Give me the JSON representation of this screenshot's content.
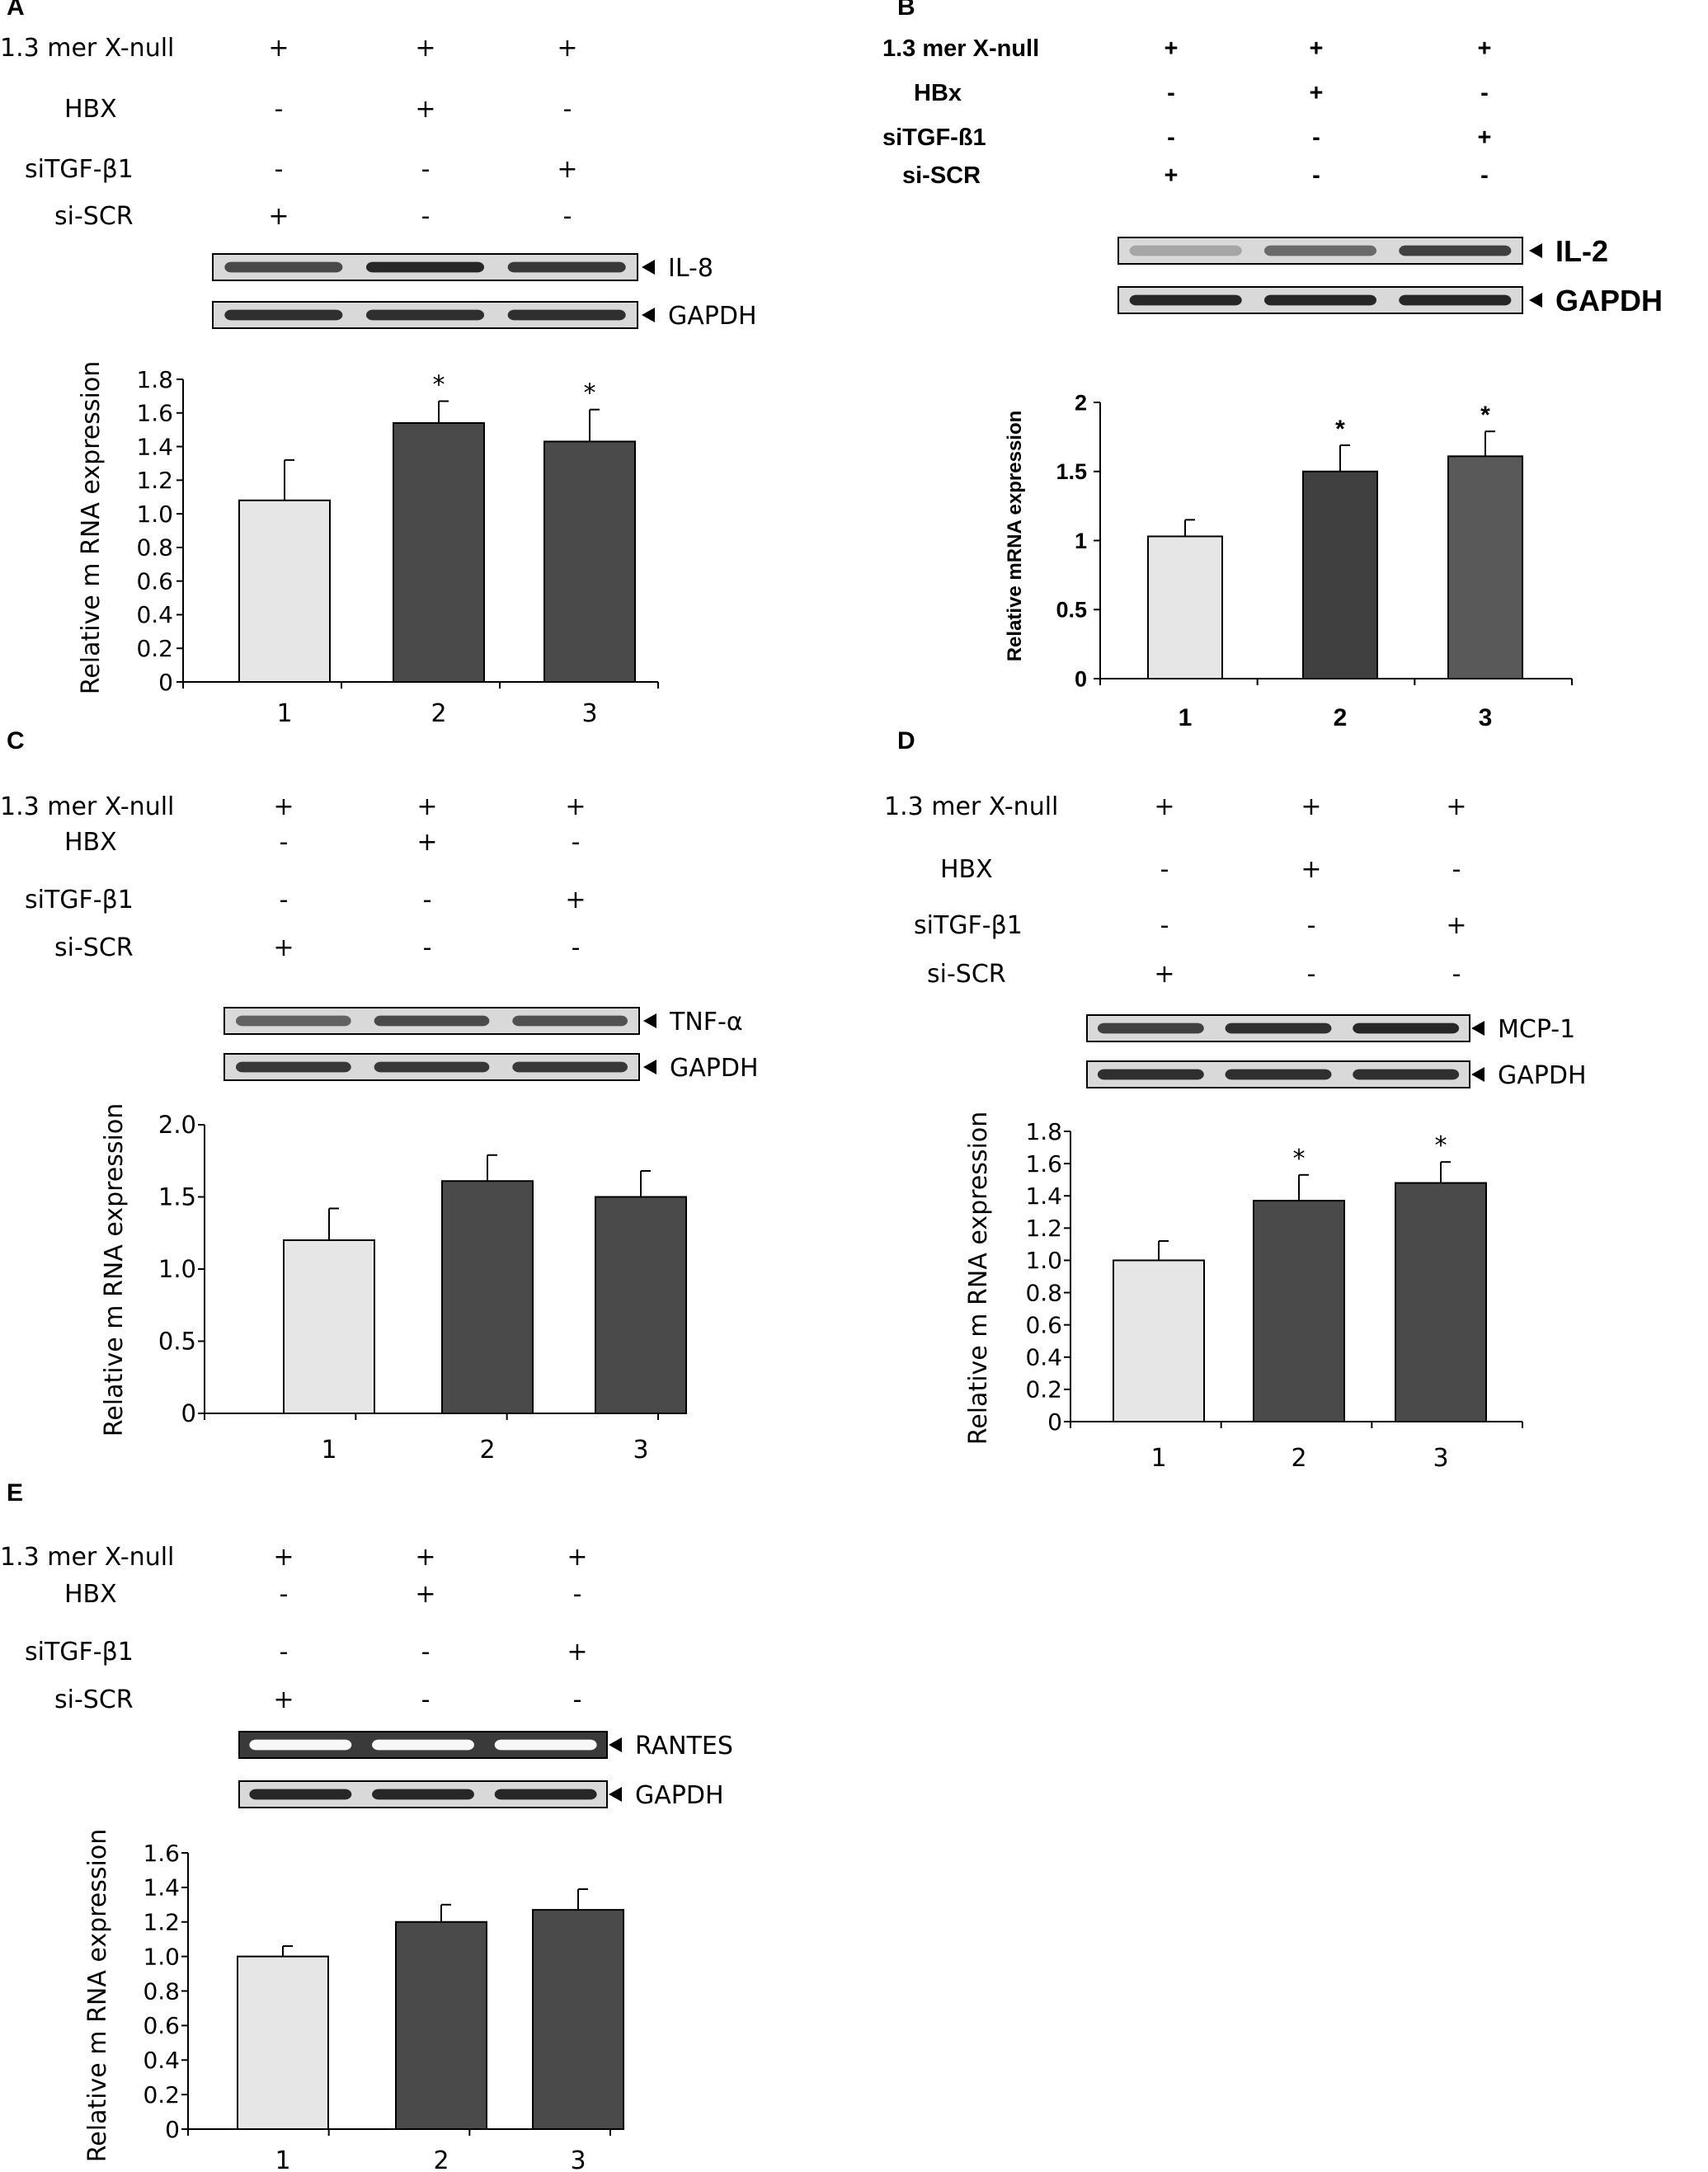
{
  "figure": {
    "panels": [
      {
        "letter": "A",
        "rows": [
          {
            "label": "1.3 mer X-null",
            "signs": [
              "+",
              "+",
              "+"
            ]
          },
          {
            "label": "HBX",
            "signs": [
              "-",
              "+",
              "-"
            ]
          },
          {
            "label": "siTGF-β1",
            "signs": [
              "-",
              "-",
              "+"
            ]
          },
          {
            "label": "si-SCR",
            "signs": [
              "+",
              "-",
              "-"
            ]
          }
        ],
        "gels": [
          {
            "label": "IL-8",
            "band_strength": [
              0.75,
              0.95,
              0.85
            ],
            "background": "light"
          },
          {
            "label": "GAPDH",
            "band_strength": [
              0.9,
              0.9,
              0.9
            ],
            "background": "light"
          }
        ]
      },
      {
        "letter": "B",
        "rows": [
          {
            "label": "1.3 mer X-null",
            "signs": [
              "+",
              "+",
              "+"
            ]
          },
          {
            "label": "HBx",
            "signs": [
              "-",
              "+",
              "-"
            ]
          },
          {
            "label": "siTGF-ß1",
            "signs": [
              "-",
              "-",
              "+"
            ]
          },
          {
            "label": "si-SCR",
            "signs": [
              "+",
              "-",
              "-"
            ]
          }
        ],
        "gels": [
          {
            "label": "IL-2",
            "band_strength": [
              0.2,
              0.55,
              0.8
            ],
            "background": "light"
          },
          {
            "label": "GAPDH",
            "band_strength": [
              0.95,
              0.95,
              0.95
            ],
            "background": "light"
          }
        ]
      },
      {
        "letter": "C",
        "rows": [
          {
            "label": "1.3 mer X-null",
            "signs": [
              "+",
              "+",
              "+"
            ]
          },
          {
            "label": "HBX",
            "signs": [
              "-",
              "+",
              "-"
            ]
          },
          {
            "label": "siTGF-β1",
            "signs": [
              "-",
              "-",
              "+"
            ]
          },
          {
            "label": "si-SCR",
            "signs": [
              "+",
              "-",
              "-"
            ]
          }
        ],
        "gels": [
          {
            "label": "TNF-α",
            "band_strength": [
              0.6,
              0.75,
              0.7
            ],
            "background": "light"
          },
          {
            "label": "GAPDH",
            "band_strength": [
              0.85,
              0.85,
              0.85
            ],
            "background": "light"
          }
        ]
      },
      {
        "letter": "D",
        "rows": [
          {
            "label": "1.3 mer X-null",
            "signs": [
              "+",
              "+",
              "+"
            ]
          },
          {
            "label": "HBX",
            "signs": [
              "-",
              "+",
              "-"
            ]
          },
          {
            "label": "siTGF-β1",
            "signs": [
              "-",
              "-",
              "+"
            ]
          },
          {
            "label": "si-SCR",
            "signs": [
              "+",
              "-",
              "-"
            ]
          }
        ],
        "gels": [
          {
            "label": "MCP-1",
            "band_strength": [
              0.8,
              0.9,
              0.95
            ],
            "background": "light"
          },
          {
            "label": "GAPDH",
            "band_strength": [
              0.9,
              0.9,
              0.9
            ],
            "background": "light"
          }
        ]
      },
      {
        "letter": "E",
        "rows": [
          {
            "label": "1.3 mer X-null",
            "signs": [
              "+",
              "+",
              "+"
            ]
          },
          {
            "label": "HBX",
            "signs": [
              "-",
              "+",
              "-"
            ]
          },
          {
            "label": "siTGF-β1",
            "signs": [
              "-",
              "-",
              "+"
            ]
          },
          {
            "label": "si-SCR",
            "signs": [
              "+",
              "-",
              "-"
            ]
          }
        ],
        "gels": [
          {
            "label": "RANTES",
            "band_strength": [
              0.9,
              0.9,
              0.9
            ],
            "background": "dark"
          },
          {
            "label": "GAPDH",
            "band_strength": [
              0.95,
              0.95,
              0.95
            ],
            "background": "light"
          }
        ]
      }
    ]
  },
  "colors": {
    "control_bar": "#e6e6e6",
    "treated_bar": "#4a4a4a",
    "panel_b_bar_2": "#404040",
    "panel_b_bar_3": "#595959",
    "axis": "#000000"
  },
  "chart_data": [
    {
      "panel": "A",
      "type": "bar",
      "categories": [
        "1",
        "2",
        "3"
      ],
      "values": [
        1.08,
        1.54,
        1.43
      ],
      "errors": [
        0.24,
        0.13,
        0.19
      ],
      "significance": [
        "",
        "*",
        "*"
      ],
      "ylabel": "Relative m RNA expression",
      "ylim": [
        0,
        1.8
      ],
      "yticks": [
        "0",
        "0.2",
        "0.4",
        "0.6",
        "0.8",
        "1.0",
        "1.2",
        "1.4",
        "1.6",
        "1.8"
      ]
    },
    {
      "panel": "B",
      "type": "bar",
      "categories": [
        "1",
        "2",
        "3"
      ],
      "values": [
        1.03,
        1.5,
        1.61
      ],
      "errors": [
        0.12,
        0.19,
        0.18
      ],
      "significance": [
        "",
        "*",
        "*"
      ],
      "ylabel": "Relative mRNA expression",
      "ylim": [
        0,
        2
      ],
      "yticks": [
        "0",
        "0.5",
        "1",
        "1.5",
        "2"
      ]
    },
    {
      "panel": "C",
      "type": "bar",
      "categories": [
        "1",
        "2",
        "3"
      ],
      "values": [
        1.2,
        1.61,
        1.5
      ],
      "errors": [
        0.22,
        0.18,
        0.18
      ],
      "significance": [
        "",
        "",
        ""
      ],
      "ylabel": "Relative m RNA expression",
      "ylim": [
        0,
        2.0
      ],
      "yticks": [
        "0",
        "0.5",
        "1.0",
        "1.5",
        "2.0"
      ]
    },
    {
      "panel": "D",
      "type": "bar",
      "categories": [
        "1",
        "2",
        "3"
      ],
      "values": [
        1.0,
        1.37,
        1.48
      ],
      "errors": [
        0.12,
        0.16,
        0.13
      ],
      "significance": [
        "",
        "*",
        "*"
      ],
      "ylabel": "Relative m RNA expression",
      "ylim": [
        0,
        1.8
      ],
      "yticks": [
        "0",
        "0.2",
        "0.4",
        "0.6",
        "0.8",
        "1.0",
        "1.2",
        "1.4",
        "1.6",
        "1.8"
      ]
    },
    {
      "panel": "E",
      "type": "bar",
      "categories": [
        "1",
        "2",
        "3"
      ],
      "values": [
        1.0,
        1.2,
        1.27
      ],
      "errors": [
        0.06,
        0.1,
        0.12
      ],
      "significance": [
        "",
        "",
        ""
      ],
      "ylabel": "Relative m RNA expression",
      "ylim": [
        0,
        1.6
      ],
      "yticks": [
        "0",
        "0.2",
        "0.4",
        "0.6",
        "0.8",
        "1.0",
        "1.2",
        "1.4",
        "1.6"
      ]
    }
  ]
}
